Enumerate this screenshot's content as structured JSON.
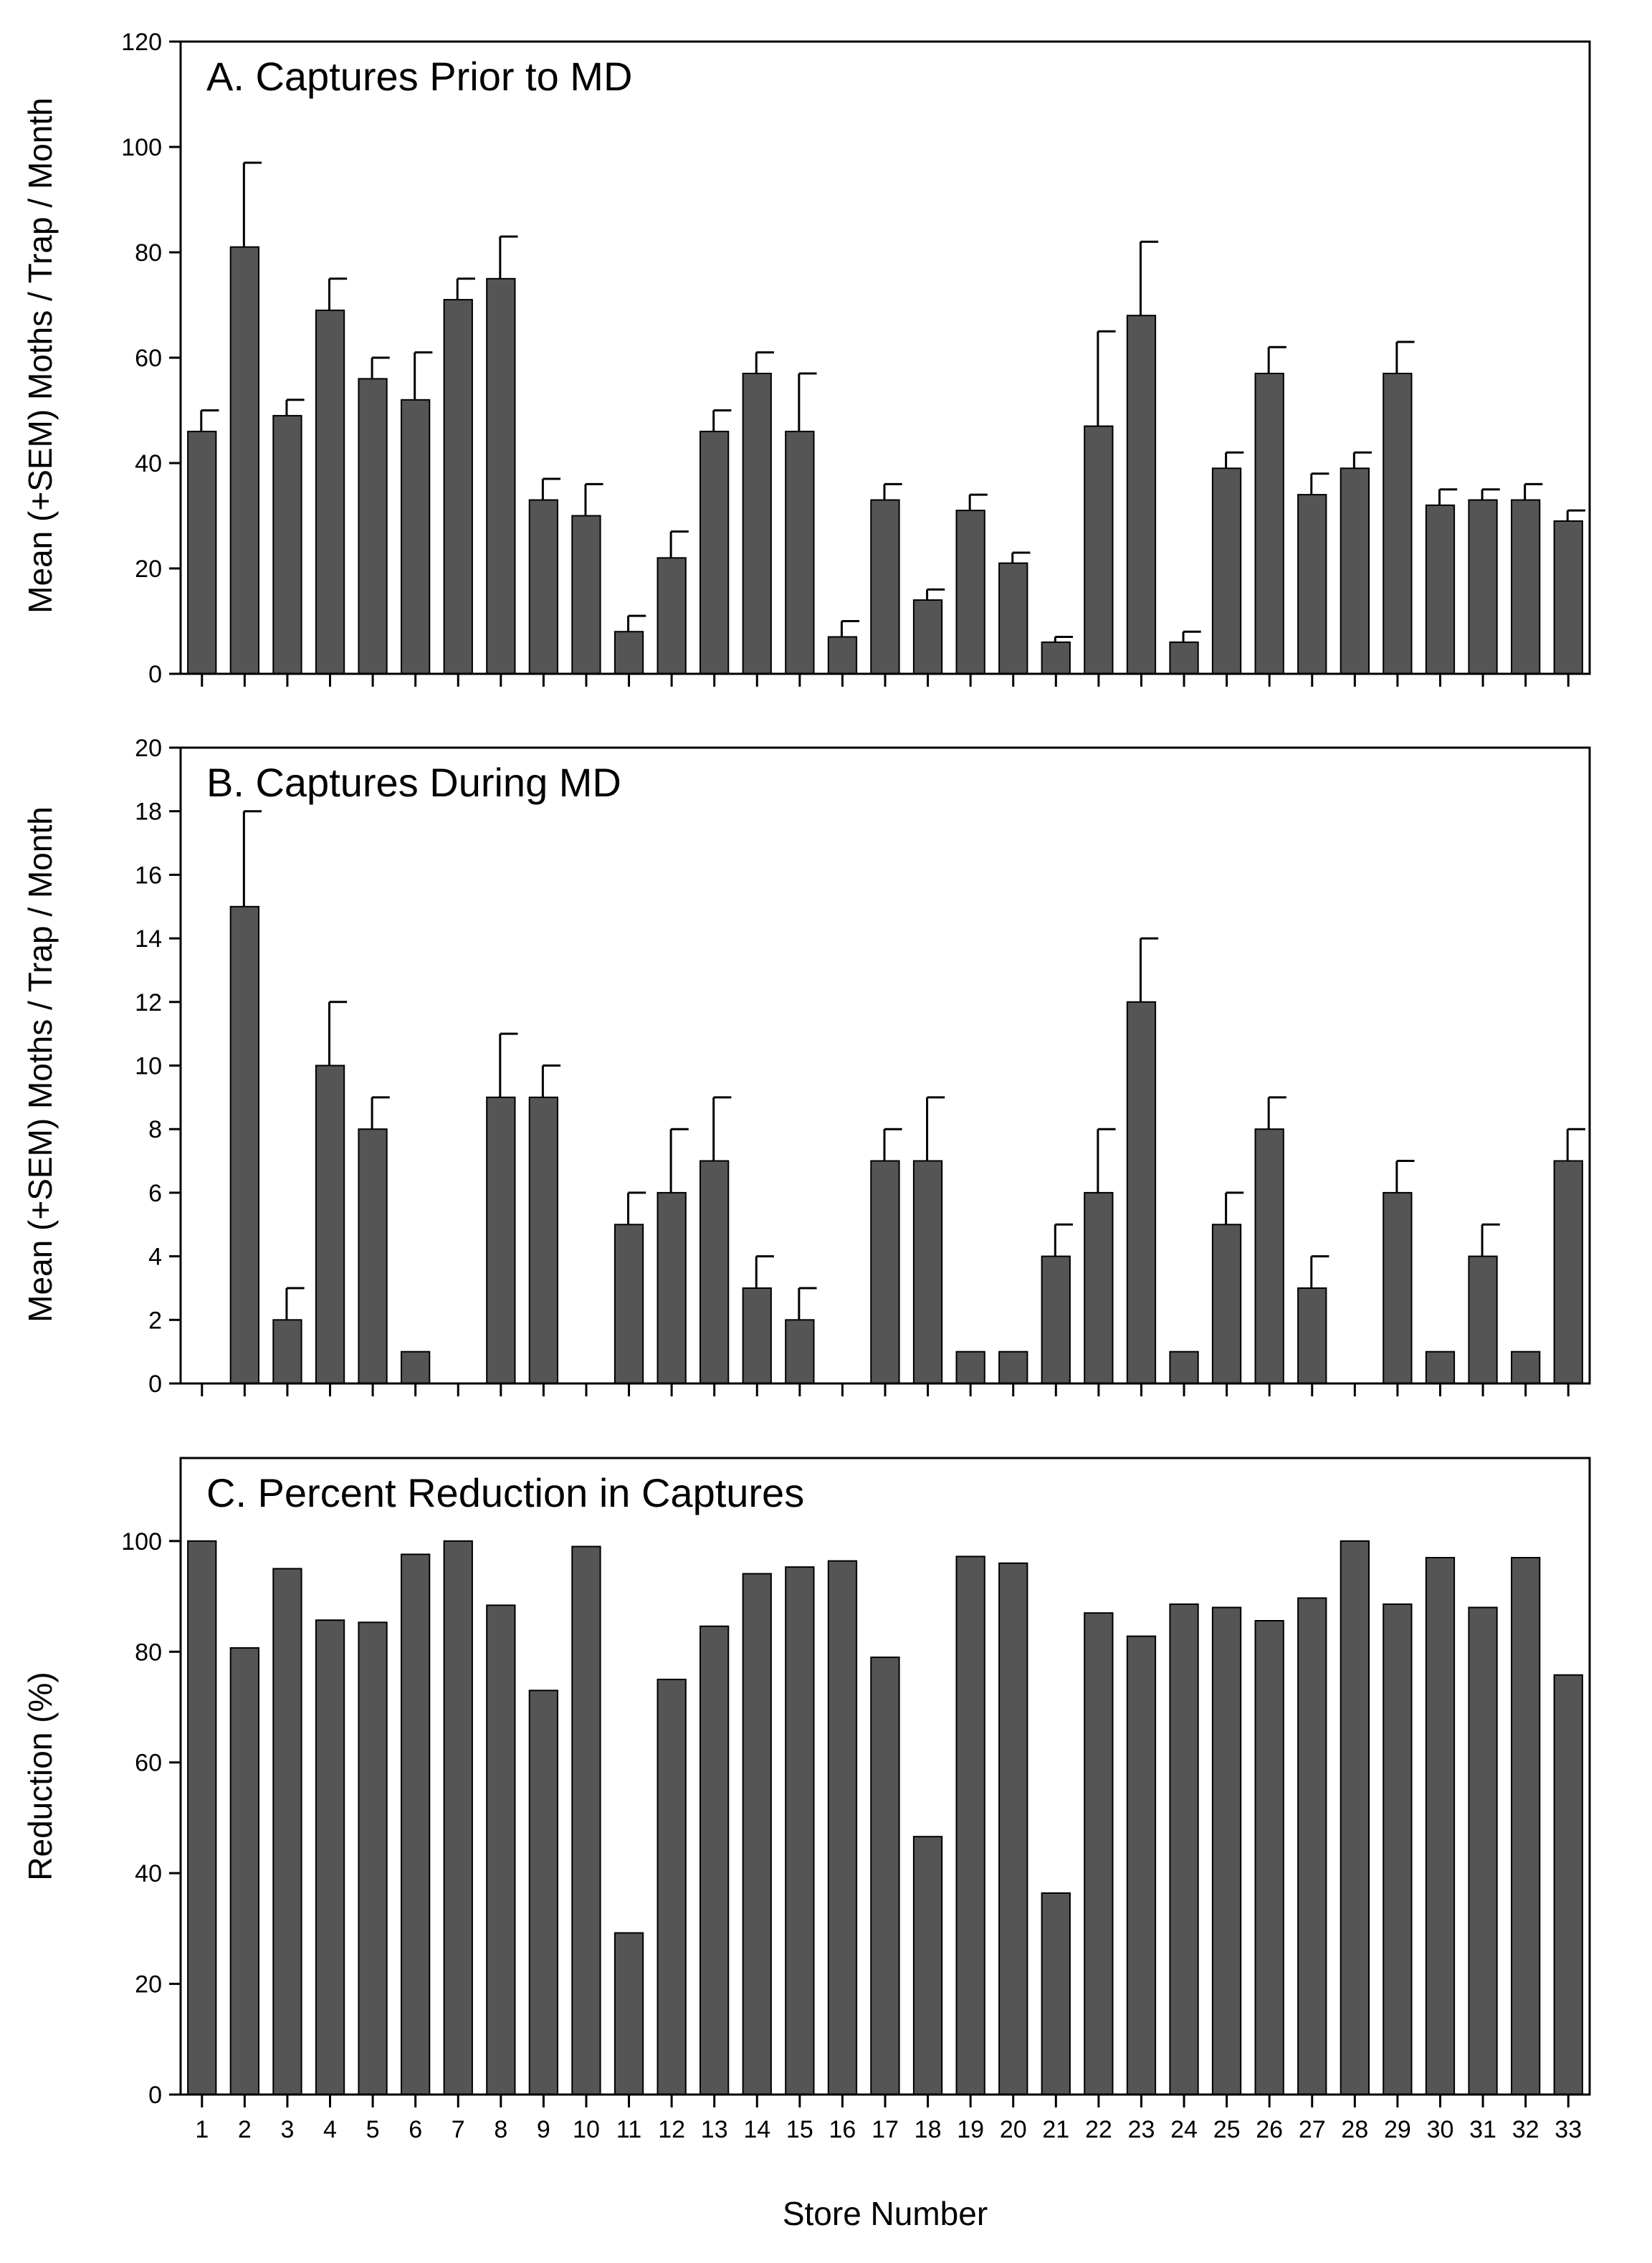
{
  "colors": {
    "bar": "#555555",
    "bar_edge": "#000000",
    "axis": "#000000",
    "background": "#ffffff"
  },
  "chart_data": [
    {
      "type": "bar",
      "title": "A. Captures Prior to MD",
      "xlabel": "",
      "ylabel": "Mean (+SEM) Moths / Trap / Month",
      "categories": [
        "1",
        "2",
        "3",
        "4",
        "5",
        "6",
        "7",
        "8",
        "9",
        "10",
        "11",
        "12",
        "13",
        "14",
        "15",
        "16",
        "17",
        "18",
        "19",
        "20",
        "21",
        "22",
        "23",
        "24",
        "25",
        "26",
        "27",
        "28",
        "29",
        "30",
        "31",
        "32",
        "33"
      ],
      "values": [
        46,
        81,
        49,
        69,
        56,
        52,
        71,
        75,
        33,
        30,
        8,
        22,
        46,
        57,
        46,
        7,
        33,
        14,
        31,
        21,
        6,
        47,
        68,
        6,
        39,
        57,
        34,
        39,
        57,
        32,
        33,
        33,
        29
      ],
      "error_upper": [
        50,
        97,
        52,
        75,
        60,
        61,
        75,
        83,
        37,
        36,
        11,
        27,
        50,
        61,
        57,
        10,
        36,
        16,
        34,
        23,
        7,
        65,
        82,
        8,
        42,
        62,
        38,
        42,
        63,
        35,
        35,
        36,
        31
      ],
      "ylim": [
        0,
        120
      ],
      "yticks": [
        0,
        20,
        40,
        60,
        80,
        100,
        120
      ],
      "show_x_tick_labels": false,
      "grid": false
    },
    {
      "type": "bar",
      "title": "B. Captures During MD",
      "xlabel": "",
      "ylabel": "Mean (+SEM) Moths / Trap / Month",
      "categories": [
        "1",
        "2",
        "3",
        "4",
        "5",
        "6",
        "7",
        "8",
        "9",
        "10",
        "11",
        "12",
        "13",
        "14",
        "15",
        "16",
        "17",
        "18",
        "19",
        "20",
        "21",
        "22",
        "23",
        "24",
        "25",
        "26",
        "27",
        "28",
        "29",
        "30",
        "31",
        "32",
        "33"
      ],
      "values": [
        0,
        15,
        2,
        10,
        8,
        1,
        0,
        9,
        9,
        0,
        5,
        6,
        7,
        3,
        2,
        0,
        7,
        7,
        1,
        1,
        4,
        6,
        12,
        1,
        5,
        8,
        3,
        0,
        6,
        1,
        4,
        1,
        7
      ],
      "error_upper": [
        null,
        18,
        3,
        12,
        9,
        null,
        null,
        11,
        10,
        null,
        6,
        8,
        9,
        4,
        3,
        null,
        8,
        9,
        null,
        null,
        5,
        8,
        14,
        null,
        6,
        9,
        4,
        null,
        7,
        null,
        5,
        null,
        8
      ],
      "ylim": [
        0,
        20
      ],
      "yticks": [
        0,
        2,
        4,
        6,
        8,
        10,
        12,
        14,
        16,
        18,
        20
      ],
      "show_x_tick_labels": false,
      "grid": false
    },
    {
      "type": "bar",
      "title": "C. Percent Reduction in Captures",
      "xlabel": "Store Number",
      "ylabel": "Reduction (%)",
      "categories": [
        "1",
        "2",
        "3",
        "4",
        "5",
        "6",
        "7",
        "8",
        "9",
        "10",
        "11",
        "12",
        "13",
        "14",
        "15",
        "16",
        "17",
        "18",
        "19",
        "20",
        "21",
        "22",
        "23",
        "24",
        "25",
        "26",
        "27",
        "28",
        "29",
        "30",
        "31",
        "32",
        "33"
      ],
      "values": [
        100,
        80.7,
        95,
        85.7,
        85.3,
        97.6,
        100,
        88.4,
        73,
        99,
        29.2,
        75,
        84.6,
        94.1,
        95.3,
        96.4,
        79,
        46.6,
        97.2,
        96,
        36.4,
        87,
        82.8,
        88.6,
        88,
        85.6,
        89.7,
        100,
        88.6,
        97,
        88,
        97,
        75.8
      ],
      "ylim": [
        0,
        115
      ],
      "yticks": [
        0,
        20,
        40,
        60,
        80,
        100
      ],
      "show_x_tick_labels": true,
      "grid": false
    }
  ]
}
